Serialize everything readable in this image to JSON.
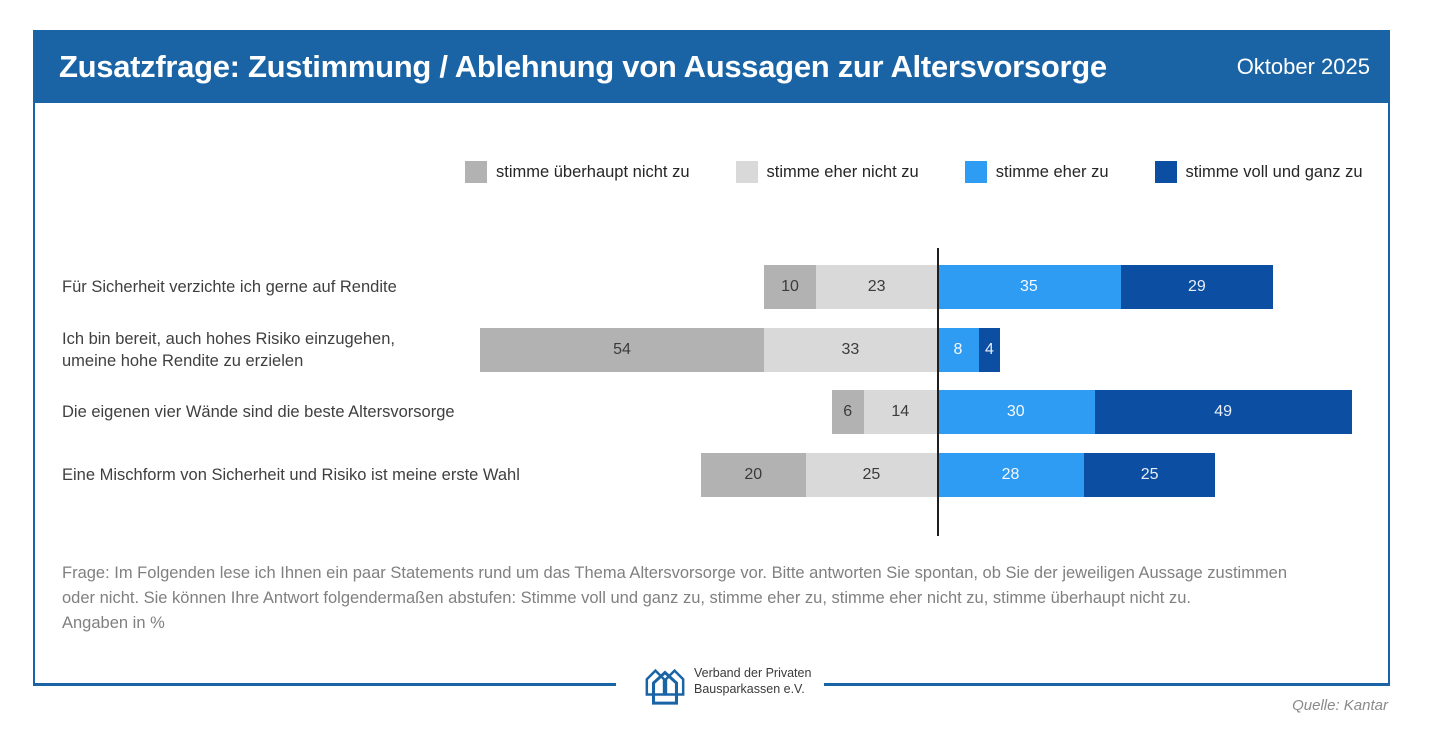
{
  "title": {
    "main": "Zusatzfrage: Zustimmung / Ablehnung von Aussagen zur Altersvorsorge",
    "date": "Oktober 2025"
  },
  "colors": {
    "header_blue": "#1a64a6",
    "axis_line": "#1f1f1f"
  },
  "chart_data": {
    "type": "bar",
    "orientation": "horizontal-diverging-stacked",
    "unit": "%",
    "legend_position": "top",
    "zero_line": true,
    "categories": [
      "Für Sicherheit verzichte ich gerne auf Rendite",
      "Ich bin bereit, auch hohes Risiko einzugehen,\numeine hohe Rendite zu erzielen",
      "Die eigenen vier Wände sind die beste Altersvorsorge",
      "Eine Mischform von Sicherheit und Risiko ist meine erste Wahl"
    ],
    "series": [
      {
        "name": "stimme überhaupt nicht zu",
        "side": "negative",
        "color": "#b2b2b3",
        "label_color": "#3b3b3b",
        "values": [
          10,
          54,
          6,
          20
        ]
      },
      {
        "name": "stimme eher nicht zu",
        "side": "negative",
        "color": "#d9d9d9",
        "label_color": "#3b3b3b",
        "values": [
          23,
          33,
          14,
          25
        ]
      },
      {
        "name": "stimme eher zu",
        "side": "positive",
        "color": "#2f9cf3",
        "label_color": "#f5f8fc",
        "values": [
          35,
          8,
          30,
          28
        ]
      },
      {
        "name": "stimme voll und ganz zu",
        "side": "positive",
        "color": "#0c4ea2",
        "label_color": "#e8eef7",
        "values": [
          29,
          4,
          49,
          25
        ]
      }
    ]
  },
  "footnote": {
    "lines": [
      "Frage: Im Folgenden lese ich Ihnen ein paar Statements rund um das Thema Altersvorsorge vor. Bitte antworten Sie spontan, ob Sie der jeweiligen Aussage zustimmen",
      "oder nicht. Sie können Ihre Antwort folgendermaßen abstufen: Stimme voll und ganz zu, stimme eher zu, stimme eher nicht zu, stimme überhaupt nicht zu.",
      "Angaben in %"
    ]
  },
  "logo": {
    "line1": "Verband der Privaten",
    "line2": "Bausparkassen e.V."
  },
  "source": "Quelle: Kantar"
}
